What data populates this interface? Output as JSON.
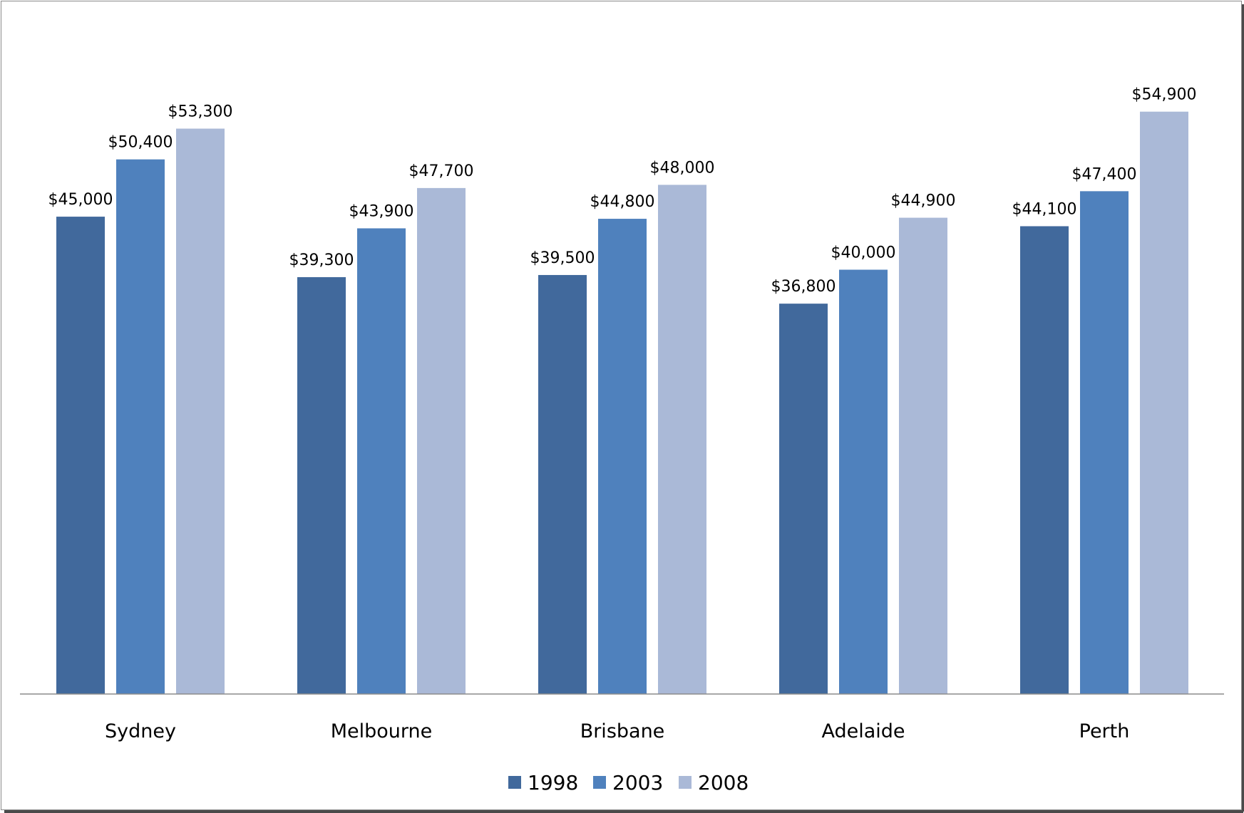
{
  "chart_data": {
    "type": "bar",
    "categories": [
      "Sydney",
      "Melbourne",
      "Brisbane",
      "Adelaide",
      "Perth"
    ],
    "series": [
      {
        "name": "1998",
        "color": "#41699c",
        "values": [
          45000,
          39300,
          39500,
          36800,
          44100
        ],
        "labels": [
          "$45,000",
          "$39,300",
          "$39,500",
          "$36,800",
          "$44,100"
        ]
      },
      {
        "name": "2003",
        "color": "#4f81bd",
        "values": [
          50400,
          43900,
          44800,
          40000,
          47400
        ],
        "labels": [
          "$50,400",
          "$43,900",
          "$44,800",
          "$40,000",
          "$47,400"
        ]
      },
      {
        "name": "2008",
        "color": "#aab9d7",
        "values": [
          53300,
          47700,
          48000,
          44900,
          54900
        ],
        "labels": [
          "$53,300",
          "$47,700",
          "$48,000",
          "$44,900",
          "$54,900"
        ]
      }
    ],
    "ylim": [
      0,
      62000
    ],
    "grid": false,
    "legend": "bottom",
    "title": "",
    "xlabel": "",
    "ylabel": ""
  }
}
